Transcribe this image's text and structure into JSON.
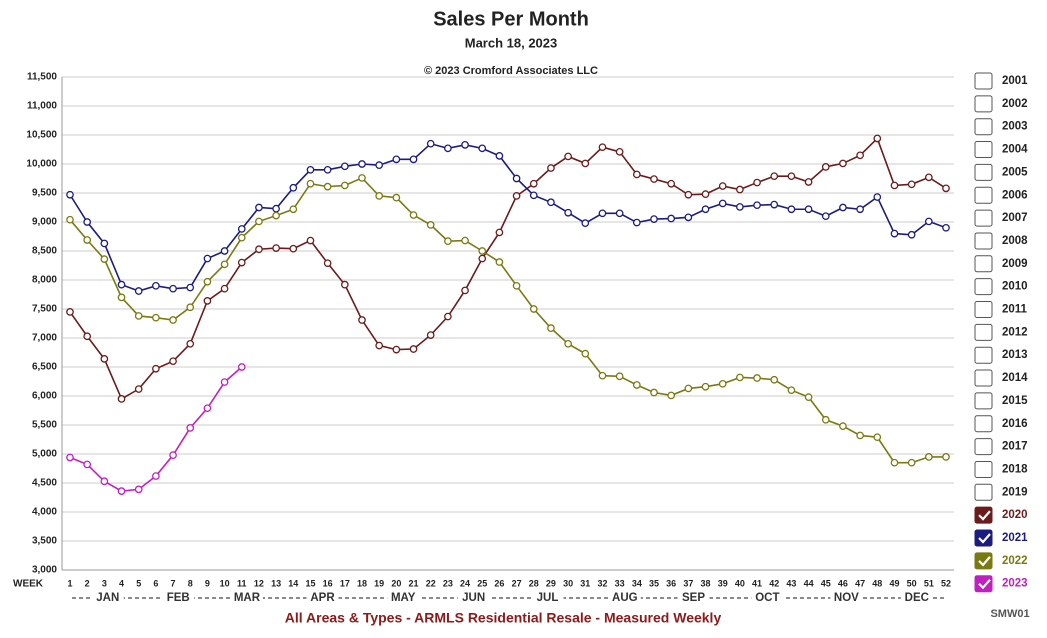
{
  "chart_data": {
    "type": "line",
    "title": "Sales Per Month",
    "subtitle": "March 18, 2023",
    "copyright": "© 2023 Cromford Associates LLC",
    "footer": "All Areas & Types - ARMLS Residential Resale - Measured Weekly",
    "code": "SMW01",
    "xlabel": "WEEK",
    "x": [
      1,
      2,
      3,
      4,
      5,
      6,
      7,
      8,
      9,
      10,
      11,
      12,
      13,
      14,
      15,
      16,
      17,
      18,
      19,
      20,
      21,
      22,
      23,
      24,
      25,
      26,
      27,
      28,
      29,
      30,
      31,
      32,
      33,
      34,
      35,
      36,
      37,
      38,
      39,
      40,
      41,
      42,
      43,
      44,
      45,
      46,
      47,
      48,
      49,
      50,
      51,
      52
    ],
    "xlim": [
      1,
      52
    ],
    "xticks": [
      1,
      2,
      3,
      4,
      5,
      6,
      7,
      8,
      9,
      10,
      11,
      12,
      13,
      14,
      15,
      16,
      17,
      18,
      19,
      20,
      21,
      22,
      23,
      24,
      25,
      26,
      27,
      28,
      29,
      30,
      31,
      32,
      33,
      34,
      35,
      36,
      37,
      38,
      39,
      40,
      41,
      42,
      43,
      44,
      45,
      46,
      47,
      48,
      49,
      50,
      51,
      52
    ],
    "months": [
      {
        "label": "JAN",
        "week": 3.2
      },
      {
        "label": "FEB",
        "week": 7.3
      },
      {
        "label": "MAR",
        "week": 11.3
      },
      {
        "label": "APR",
        "week": 15.7
      },
      {
        "label": "MAY",
        "week": 20.4
      },
      {
        "label": "JUN",
        "week": 24.5
      },
      {
        "label": "JUL",
        "week": 28.8
      },
      {
        "label": "AUG",
        "week": 33.3
      },
      {
        "label": "SEP",
        "week": 37.3
      },
      {
        "label": "OCT",
        "week": 41.6
      },
      {
        "label": "NOV",
        "week": 46.2
      },
      {
        "label": "DEC",
        "week": 50.3
      }
    ],
    "ylim": [
      3000,
      11500
    ],
    "yticks": [
      {
        "value": 3000,
        "label": "3,000"
      },
      {
        "value": 3500,
        "label": "3,500"
      },
      {
        "value": 4000,
        "label": "4,000"
      },
      {
        "value": 4500,
        "label": "4,500"
      },
      {
        "value": 5000,
        "label": "5,000"
      },
      {
        "value": 5500,
        "label": "5,500"
      },
      {
        "value": 6000,
        "label": "6,000"
      },
      {
        "value": 6500,
        "label": "6,500"
      },
      {
        "value": 7000,
        "label": "7,000"
      },
      {
        "value": 7500,
        "label": "7,500"
      },
      {
        "value": 8000,
        "label": "8,000"
      },
      {
        "value": 8500,
        "label": "8,500"
      },
      {
        "value": 9000,
        "label": "9,000"
      },
      {
        "value": 9500,
        "label": "9,500"
      },
      {
        "value": 10000,
        "label": "10,000"
      },
      {
        "value": 10500,
        "label": "10,500"
      },
      {
        "value": 11000,
        "label": "11,000"
      },
      {
        "value": 11500,
        "label": "11,500"
      }
    ],
    "grid": true,
    "legend_unchecked": [
      "2001",
      "2002",
      "2003",
      "2004",
      "2005",
      "2006",
      "2007",
      "2008",
      "2009",
      "2010",
      "2011",
      "2012",
      "2013",
      "2014",
      "2015",
      "2016",
      "2017",
      "2018",
      "2019"
    ],
    "series": [
      {
        "name": "2020",
        "color": "#6b1b1b",
        "values": [
          7450,
          7030,
          6640,
          5950,
          6120,
          6470,
          6600,
          6900,
          7640,
          7850,
          8300,
          8530,
          8550,
          8540,
          8680,
          8290,
          7920,
          7310,
          6870,
          6800,
          6810,
          7050,
          7370,
          7820,
          8370,
          8820,
          9450,
          9660,
          9930,
          10130,
          10010,
          10290,
          10210,
          9820,
          9740,
          9660,
          9470,
          9480,
          9620,
          9560,
          9680,
          9790,
          9790,
          9690,
          9950,
          10010,
          10150,
          10440,
          9630,
          9650,
          9770,
          9580
        ]
      },
      {
        "name": "2021",
        "color": "#1c1c80",
        "values": [
          9470,
          9000,
          8630,
          7920,
          7810,
          7900,
          7850,
          7870,
          8370,
          8500,
          8880,
          9250,
          9230,
          9590,
          9900,
          9900,
          9960,
          10000,
          9980,
          10080,
          10080,
          10350,
          10270,
          10330,
          10270,
          10140,
          9750,
          9460,
          9340,
          9160,
          8980,
          9150,
          9150,
          8990,
          9050,
          9060,
          9080,
          9220,
          9320,
          9260,
          9290,
          9300,
          9220,
          9220,
          9100,
          9250,
          9220,
          9430,
          8800,
          8780,
          9010,
          8900
        ]
      },
      {
        "name": "2022",
        "color": "#7a7a12",
        "values": [
          9040,
          8690,
          8360,
          7700,
          7380,
          7350,
          7310,
          7530,
          7970,
          8270,
          8730,
          9010,
          9110,
          9220,
          9660,
          9610,
          9630,
          9760,
          9450,
          9420,
          9120,
          8950,
          8670,
          8680,
          8500,
          8310,
          7900,
          7500,
          7170,
          6900,
          6730,
          6350,
          6340,
          6190,
          6060,
          6010,
          6130,
          6160,
          6210,
          6320,
          6310,
          6280,
          6100,
          5980,
          5590,
          5480,
          5320,
          5290,
          4850,
          4850,
          4950,
          4950
        ]
      },
      {
        "name": "2023",
        "color": "#c020c0",
        "values": [
          4940,
          4820,
          4530,
          4360,
          4390,
          4620,
          4980,
          5450,
          5790,
          6240,
          6500,
          null,
          null,
          null,
          null,
          null,
          null,
          null,
          null,
          null,
          null,
          null,
          null,
          null,
          null,
          null,
          null,
          null,
          null,
          null,
          null,
          null,
          null,
          null,
          null,
          null,
          null,
          null,
          null,
          null,
          null,
          null,
          null,
          null,
          null,
          null,
          null,
          null,
          null,
          null,
          null,
          null
        ]
      }
    ]
  }
}
